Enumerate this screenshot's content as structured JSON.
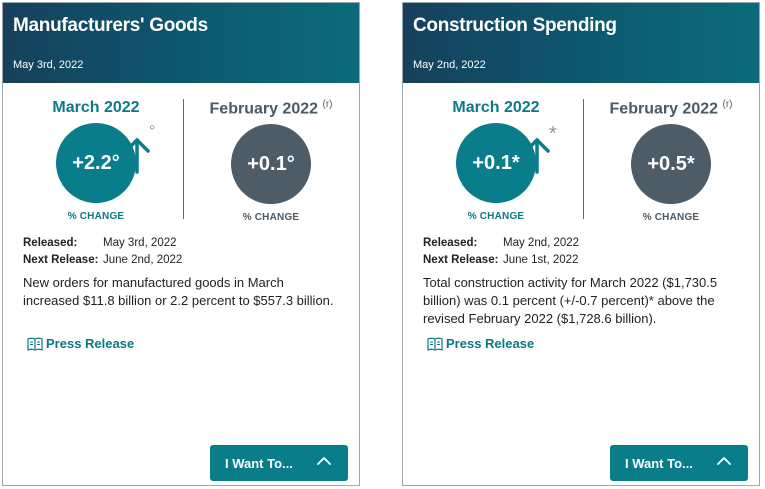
{
  "cards": [
    {
      "title": "Manufacturers' Goods",
      "date": "May 3rd, 2022",
      "current": {
        "label": "March 2022",
        "value": "+2.2°",
        "pct_label": "% CHANGE",
        "mark": "°"
      },
      "previous": {
        "label": "February 2022",
        "revised": "(r)",
        "value": "+0.1°",
        "pct_label": "% CHANGE"
      },
      "released_label": "Released:",
      "released": "May 3rd, 2022",
      "next_label": "Next Release:",
      "next": "June 2nd, 2022",
      "description": "New orders for manufactured goods in March increased $11.8 billion or 2.2 percent to $557.3 billion.",
      "press_label": "Press Release",
      "want_label": "I Want To..."
    },
    {
      "title": "Construction Spending",
      "date": "May 2nd, 2022",
      "current": {
        "label": "March 2022",
        "value": "+0.1*",
        "pct_label": "% CHANGE",
        "mark": "*"
      },
      "previous": {
        "label": "February 2022",
        "revised": "(r)",
        "value": "+0.5*",
        "pct_label": "% CHANGE"
      },
      "released_label": "Released:",
      "released": "May 2nd, 2022",
      "next_label": "Next Release:",
      "next": "June 1st, 2022",
      "description": "Total construction activity for March 2022 ($1,730.5 billion) was 0.1 percent (+/-0.7 percent)* above the revised February 2022 ($1,728.6 billion).",
      "press_label": "Press Release",
      "want_label": "I Want To..."
    }
  ],
  "colors": {
    "accent": "#0a7d8a",
    "previous": "#4d5c66",
    "header": "#16405c"
  },
  "icons": {
    "trend": "arrow-up-icon",
    "press": "book-icon",
    "toggle": "chevron-up-icon"
  }
}
